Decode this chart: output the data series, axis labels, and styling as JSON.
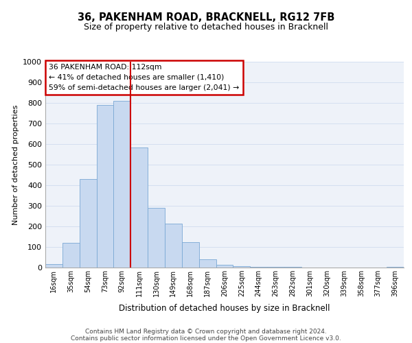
{
  "title1": "36, PAKENHAM ROAD, BRACKNELL, RG12 7FB",
  "title2": "Size of property relative to detached houses in Bracknell",
  "xlabel": "Distribution of detached houses by size in Bracknell",
  "ylabel": "Number of detached properties",
  "bar_labels": [
    "16sqm",
    "35sqm",
    "54sqm",
    "73sqm",
    "92sqm",
    "111sqm",
    "130sqm",
    "149sqm",
    "168sqm",
    "187sqm",
    "206sqm",
    "225sqm",
    "244sqm",
    "263sqm",
    "282sqm",
    "301sqm",
    "320sqm",
    "339sqm",
    "358sqm",
    "377sqm",
    "396sqm"
  ],
  "bar_heights": [
    18,
    120,
    430,
    790,
    810,
    585,
    290,
    215,
    125,
    40,
    15,
    8,
    5,
    3,
    2,
    1,
    1,
    1,
    1,
    1,
    5
  ],
  "bar_color": "#c8d9f0",
  "bar_edge_color": "#7aa8d4",
  "vline_x_idx": 4.5,
  "vline_color": "#cc0000",
  "ylim": [
    0,
    1000
  ],
  "yticks": [
    0,
    100,
    200,
    300,
    400,
    500,
    600,
    700,
    800,
    900,
    1000
  ],
  "annotation_text": "36 PAKENHAM ROAD: 112sqm\n← 41% of detached houses are smaller (1,410)\n59% of semi-detached houses are larger (2,041) →",
  "annotation_box_color": "#ffffff",
  "annotation_box_edge": "#cc0000",
  "grid_color": "#d4dff0",
  "footer1": "Contains HM Land Registry data © Crown copyright and database right 2024.",
  "footer2": "Contains public sector information licensed under the Open Government Licence v3.0."
}
